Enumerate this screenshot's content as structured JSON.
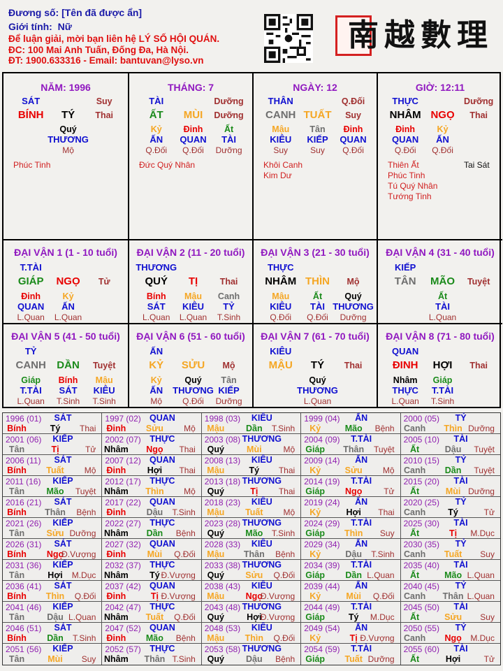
{
  "header": {
    "name_line": "Đương số: [Tên đã được ẩn]",
    "gender_label": "Giới tính:",
    "gender_value": "Nữ",
    "contact_1": "Để luận giải, mời bạn liên hệ LÝ SỐ HỘI QUÁN.",
    "contact_2": "ĐC: 100 Mai Anh Tuấn, Đống Đa, Hà Nội.",
    "contact_3": "ĐT: 1900.633316 - Email: bantuvan@lyso.vn",
    "logo_text": "南越數理"
  },
  "colors": {
    "fire": "#e80000",
    "earth": "#f5a623",
    "wood": "#1a8a1a",
    "metal": "#6e6e6e",
    "water": "#000000",
    "ten_god": "#1010d0",
    "phase": "#a03030",
    "title": "#9018c0",
    "star": "#d02020"
  },
  "elements": {
    "giáp": "wood",
    "ất": "wood",
    "bính": "fire",
    "đinh": "fire",
    "mậu": "earth",
    "kỷ": "earth",
    "canh": "metal",
    "tân": "metal",
    "nhâm": "water",
    "quý": "water",
    "tý": "water",
    "sửu": "earth",
    "dần": "wood",
    "mão": "wood",
    "thìn": "earth",
    "tị": "fire",
    "ngọ": "fire",
    "mùi": "earth",
    "thân": "metal",
    "dậu": "metal",
    "tuất": "earth",
    "hợi": "water"
  },
  "pillars": [
    {
      "title": "NĂM: 1996",
      "god": "SÁT",
      "phase_top": "Suy",
      "stem": "BÍNH",
      "branch": "TÝ",
      "phase": "Thai",
      "hidden": [
        {
          "s": "Quý",
          "g": "THƯƠNG",
          "p": "Mộ"
        }
      ],
      "stars": [
        "Phúc Tinh"
      ],
      "stars_right": []
    },
    {
      "title": "THÁNG: 7",
      "god": "TÀI",
      "phase_top": "Dưỡng",
      "stem": "ẤT",
      "branch": "MÙI",
      "phase": "Dưỡng",
      "hidden": [
        {
          "s": "Kỷ",
          "g": "ẤN",
          "p": "Q.Đối"
        },
        {
          "s": "Đinh",
          "g": "QUAN",
          "p": "Q.Đối"
        },
        {
          "s": "Ất",
          "g": "TÀI",
          "p": "Dưỡng"
        }
      ],
      "stars": [
        "Đức Quý Nhân"
      ],
      "stars_right": []
    },
    {
      "title": "NGÀY: 12",
      "god": "THÂN",
      "phase_top": "Q.Đối",
      "stem": "CANH",
      "branch": "TUẤT",
      "phase": "Suy",
      "hidden": [
        {
          "s": "Mậu",
          "g": "KIÊU",
          "p": "Suy"
        },
        {
          "s": "Tân",
          "g": "KIẾP",
          "p": "Suy"
        },
        {
          "s": "Đinh",
          "g": "QUAN",
          "p": "Q.Đối"
        }
      ],
      "stars": [
        "Khôi Canh",
        "Kim Dư"
      ],
      "stars_right": []
    },
    {
      "title": "GIỜ: 12:11",
      "god": "THỰC",
      "phase_top": "Dưỡng",
      "stem": "NHÂM",
      "branch": "NGỌ",
      "phase": "Thai",
      "hidden": [
        {
          "s": "Đinh",
          "g": "QUAN",
          "p": "Q.Đối"
        },
        {
          "s": "Kỷ",
          "g": "ẤN",
          "p": "Q.Đối"
        }
      ],
      "stars": [
        "Thiên Ất",
        "Phúc Tinh",
        "Tú Quý Nhân",
        "Tướng Tinh"
      ],
      "stars_right": [
        "Tai Sát"
      ]
    }
  ],
  "luck_pillars": [
    {
      "title": "ĐẠI VẬN 1 (1 - 10 tuổi)",
      "god": "T.TÀI",
      "stem": "GIÁP",
      "branch": "NGỌ",
      "phase": "Tử",
      "hidden": [
        {
          "s": "Đinh",
          "g": "QUAN",
          "p": "L.Quan"
        },
        {
          "s": "Kỷ",
          "g": "ẤN",
          "p": "L.Quan"
        }
      ]
    },
    {
      "title": "ĐẠI VẬN 2 (11 - 20 tuổi)",
      "god": "THƯƠNG",
      "stem": "QUÝ",
      "branch": "TỊ",
      "phase": "Thai",
      "hidden": [
        {
          "s": "Bính",
          "g": "SÁT",
          "p": "L.Quan"
        },
        {
          "s": "Mậu",
          "g": "KIÊU",
          "p": "L.Quan"
        },
        {
          "s": "Canh",
          "g": "TỶ",
          "p": "T.Sinh"
        }
      ]
    },
    {
      "title": "ĐẠI VẬN 3 (21 - 30 tuổi)",
      "god": "THỰC",
      "stem": "NHÂM",
      "branch": "THÌN",
      "phase": "Mộ",
      "hidden": [
        {
          "s": "Mậu",
          "g": "KIÊU",
          "p": "Q.Đối"
        },
        {
          "s": "Ất",
          "g": "TÀI",
          "p": "Q.Đối"
        },
        {
          "s": "Quý",
          "g": "THƯƠNG",
          "p": "Dưỡng"
        }
      ]
    },
    {
      "title": "ĐẠI VẬN 4 (31 - 40 tuổi)",
      "god": "KIẾP",
      "stem": "TÂN",
      "branch": "MÃO",
      "phase": "Tuyệt",
      "hidden": [
        {
          "s": "Ất",
          "g": "TÀI",
          "p": "L.Quan"
        }
      ]
    },
    {
      "title": "ĐẠI VẬN 5 (41 - 50 tuổi)",
      "god": "TỶ",
      "stem": "CANH",
      "branch": "DẦN",
      "phase": "Tuyệt",
      "hidden": [
        {
          "s": "Giáp",
          "g": "T.TÀI",
          "p": "L.Quan"
        },
        {
          "s": "Bính",
          "g": "SÁT",
          "p": "T.Sinh"
        },
        {
          "s": "Mậu",
          "g": "KIÊU",
          "p": "T.Sinh"
        }
      ]
    },
    {
      "title": "ĐẠI VẬN 6 (51 - 60 tuổi)",
      "god": "ẤN",
      "stem": "KỶ",
      "branch": "SỬU",
      "phase": "Mộ",
      "hidden": [
        {
          "s": "Kỷ",
          "g": "ẤN",
          "p": "Mộ"
        },
        {
          "s": "Quý",
          "g": "THƯƠNG",
          "p": "Q.Đối"
        },
        {
          "s": "Tân",
          "g": "KIẾP",
          "p": "Dưỡng"
        }
      ]
    },
    {
      "title": "ĐẠI VẬN 7 (61 - 70 tuổi)",
      "god": "KIÊU",
      "stem": "MẬU",
      "branch": "TÝ",
      "phase": "Thai",
      "hidden": [
        {
          "s": "Quý",
          "g": "THƯƠNG",
          "p": "L.Quan"
        }
      ]
    },
    {
      "title": "ĐẠI VẬN 8 (71 - 80 tuổi)",
      "god": "QUAN",
      "stem": "ĐINH",
      "branch": "HỢI",
      "phase": "Thai",
      "hidden": [
        {
          "s": "Nhâm",
          "g": "THỰC",
          "p": "L.Quan"
        },
        {
          "s": "Giáp",
          "g": "T.TÀI",
          "p": "T.Sinh"
        }
      ]
    }
  ],
  "years": [
    [
      "1996 (01)",
      "SÁT",
      "Bính",
      "Tý",
      "Thai"
    ],
    [
      "1997 (02)",
      "QUAN",
      "Đinh",
      "Sửu",
      "Mộ"
    ],
    [
      "1998 (03)",
      "KIÊU",
      "Mậu",
      "Dần",
      "T.Sinh"
    ],
    [
      "1999 (04)",
      "ẤN",
      "Kỷ",
      "Mão",
      "Bệnh"
    ],
    [
      "2000 (05)",
      "TỶ",
      "Canh",
      "Thìn",
      "Dưỡng"
    ],
    [
      "2001 (06)",
      "KIẾP",
      "Tân",
      "Tị",
      "Tử"
    ],
    [
      "2002 (07)",
      "THỰC",
      "Nhâm",
      "Ngọ",
      "Thai"
    ],
    [
      "2003 (08)",
      "THƯƠNG",
      "Quý",
      "Mùi",
      "Mộ"
    ],
    [
      "2004 (09)",
      "T.TÀI",
      "Giáp",
      "Thân",
      "Tuyệt"
    ],
    [
      "2005 (10)",
      "TÀI",
      "Ất",
      "Dậu",
      "Tuyệt"
    ],
    [
      "2006 (11)",
      "SÁT",
      "Bính",
      "Tuất",
      "Mộ"
    ],
    [
      "2007 (12)",
      "QUAN",
      "Đinh",
      "Hợi",
      "Thai"
    ],
    [
      "2008 (13)",
      "KIÊU",
      "Mậu",
      "Tý",
      "Thai"
    ],
    [
      "2009 (14)",
      "ẤN",
      "Kỷ",
      "Sửu",
      "Mộ"
    ],
    [
      "2010 (15)",
      "TỶ",
      "Canh",
      "Dần",
      "Tuyệt"
    ],
    [
      "2011 (16)",
      "KIẾP",
      "Tân",
      "Mão",
      "Tuyệt"
    ],
    [
      "2012 (17)",
      "THỰC",
      "Nhâm",
      "Thìn",
      "Mộ"
    ],
    [
      "2013 (18)",
      "THƯƠNG",
      "Quý",
      "Tị",
      "Thai"
    ],
    [
      "2014 (19)",
      "T.TÀI",
      "Giáp",
      "Ngọ",
      "Tử"
    ],
    [
      "2015 (20)",
      "TÀI",
      "Ất",
      "Mùi",
      "Dưỡng"
    ],
    [
      "2016 (21)",
      "SÁT",
      "Bính",
      "Thân",
      "Bệnh"
    ],
    [
      "2017 (22)",
      "QUAN",
      "Đinh",
      "Dậu",
      "T.Sinh"
    ],
    [
      "2018 (23)",
      "KIÊU",
      "Mậu",
      "Tuất",
      "Mộ"
    ],
    [
      "2019 (24)",
      "ẤN",
      "Kỷ",
      "Hợi",
      "Thai"
    ],
    [
      "2020 (25)",
      "TỶ",
      "Canh",
      "Tý",
      "Tử"
    ],
    [
      "2021 (26)",
      "KIẾP",
      "Tân",
      "Sửu",
      "Dưỡng"
    ],
    [
      "2022 (27)",
      "THỰC",
      "Nhâm",
      "Dần",
      "Bệnh"
    ],
    [
      "2023 (28)",
      "THƯƠNG",
      "Quý",
      "Mão",
      "T.Sinh"
    ],
    [
      "2024 (29)",
      "T.TÀI",
      "Giáp",
      "Thìn",
      "Suy"
    ],
    [
      "2025 (30)",
      "TÀI",
      "Ất",
      "Tị",
      "M.Dục"
    ],
    [
      "2026 (31)",
      "SÁT",
      "Bính",
      "Ngọ",
      "Đ.Vượng"
    ],
    [
      "2027 (32)",
      "QUAN",
      "Đinh",
      "Mùi",
      "Q.Đối"
    ],
    [
      "2028 (33)",
      "KIÊU",
      "Mậu",
      "Thân",
      "Bệnh"
    ],
    [
      "2029 (34)",
      "ẤN",
      "Kỷ",
      "Dậu",
      "T.Sinh"
    ],
    [
      "2030 (35)",
      "TỶ",
      "Canh",
      "Tuất",
      "Suy"
    ],
    [
      "2031 (36)",
      "KIẾP",
      "Tân",
      "Hợi",
      "M.Dục"
    ],
    [
      "2032 (37)",
      "THỰC",
      "Nhâm",
      "Tý",
      "Đ.Vượng"
    ],
    [
      "2033 (38)",
      "THƯƠNG",
      "Quý",
      "Sửu",
      "Q.Đối"
    ],
    [
      "2034 (39)",
      "T.TÀI",
      "Giáp",
      "Dần",
      "L.Quan"
    ],
    [
      "2035 (40)",
      "TÀI",
      "Ất",
      "Mão",
      "L.Quan"
    ],
    [
      "2036 (41)",
      "SÁT",
      "Bính",
      "Thìn",
      "Q.Đối"
    ],
    [
      "2037 (42)",
      "QUAN",
      "Đinh",
      "Tị",
      "Đ.Vượng"
    ],
    [
      "2038 (43)",
      "KIÊU",
      "Mậu",
      "Ngọ",
      "Đ.Vượng"
    ],
    [
      "2039 (44)",
      "ẤN",
      "Kỷ",
      "Mùi",
      "Q.Đối"
    ],
    [
      "2040 (45)",
      "TỶ",
      "Canh",
      "Thân",
      "L.Quan"
    ],
    [
      "2041 (46)",
      "KIẾP",
      "Tân",
      "Dậu",
      "L.Quan"
    ],
    [
      "2042 (47)",
      "THỰC",
      "Nhâm",
      "Tuất",
      "Q.Đối"
    ],
    [
      "2043 (48)",
      "THƯƠNG",
      "Quý",
      "Hợi",
      "Đ.Vượng"
    ],
    [
      "2044 (49)",
      "T.TÀI",
      "Giáp",
      "Tý",
      "M.Dục"
    ],
    [
      "2045 (50)",
      "TÀI",
      "Ất",
      "Sửu",
      "Suy"
    ],
    [
      "2046 (51)",
      "SÁT",
      "Bính",
      "Dần",
      "T.Sinh"
    ],
    [
      "2047 (52)",
      "QUAN",
      "Đinh",
      "Mão",
      "Bệnh"
    ],
    [
      "2048 (53)",
      "KIÊU",
      "Mậu",
      "Thìn",
      "Q.Đối"
    ],
    [
      "2049 (54)",
      "ẤN",
      "Kỷ",
      "Tị",
      "Đ.Vượng"
    ],
    [
      "2050 (55)",
      "TỶ",
      "Canh",
      "Ngọ",
      "M.Dục"
    ],
    [
      "2051 (56)",
      "KIẾP",
      "Tân",
      "Mùi",
      "Suy"
    ],
    [
      "2052 (57)",
      "THỰC",
      "Nhâm",
      "Thân",
      "T.Sinh"
    ],
    [
      "2053 (58)",
      "THƯƠNG",
      "Quý",
      "Dậu",
      "Bệnh"
    ],
    [
      "2054 (59)",
      "T.TÀI",
      "Giáp",
      "Tuất",
      "Dưỡng"
    ],
    [
      "2055 (60)",
      "TÀI",
      "Ất",
      "Hợi",
      "Tử"
    ]
  ]
}
